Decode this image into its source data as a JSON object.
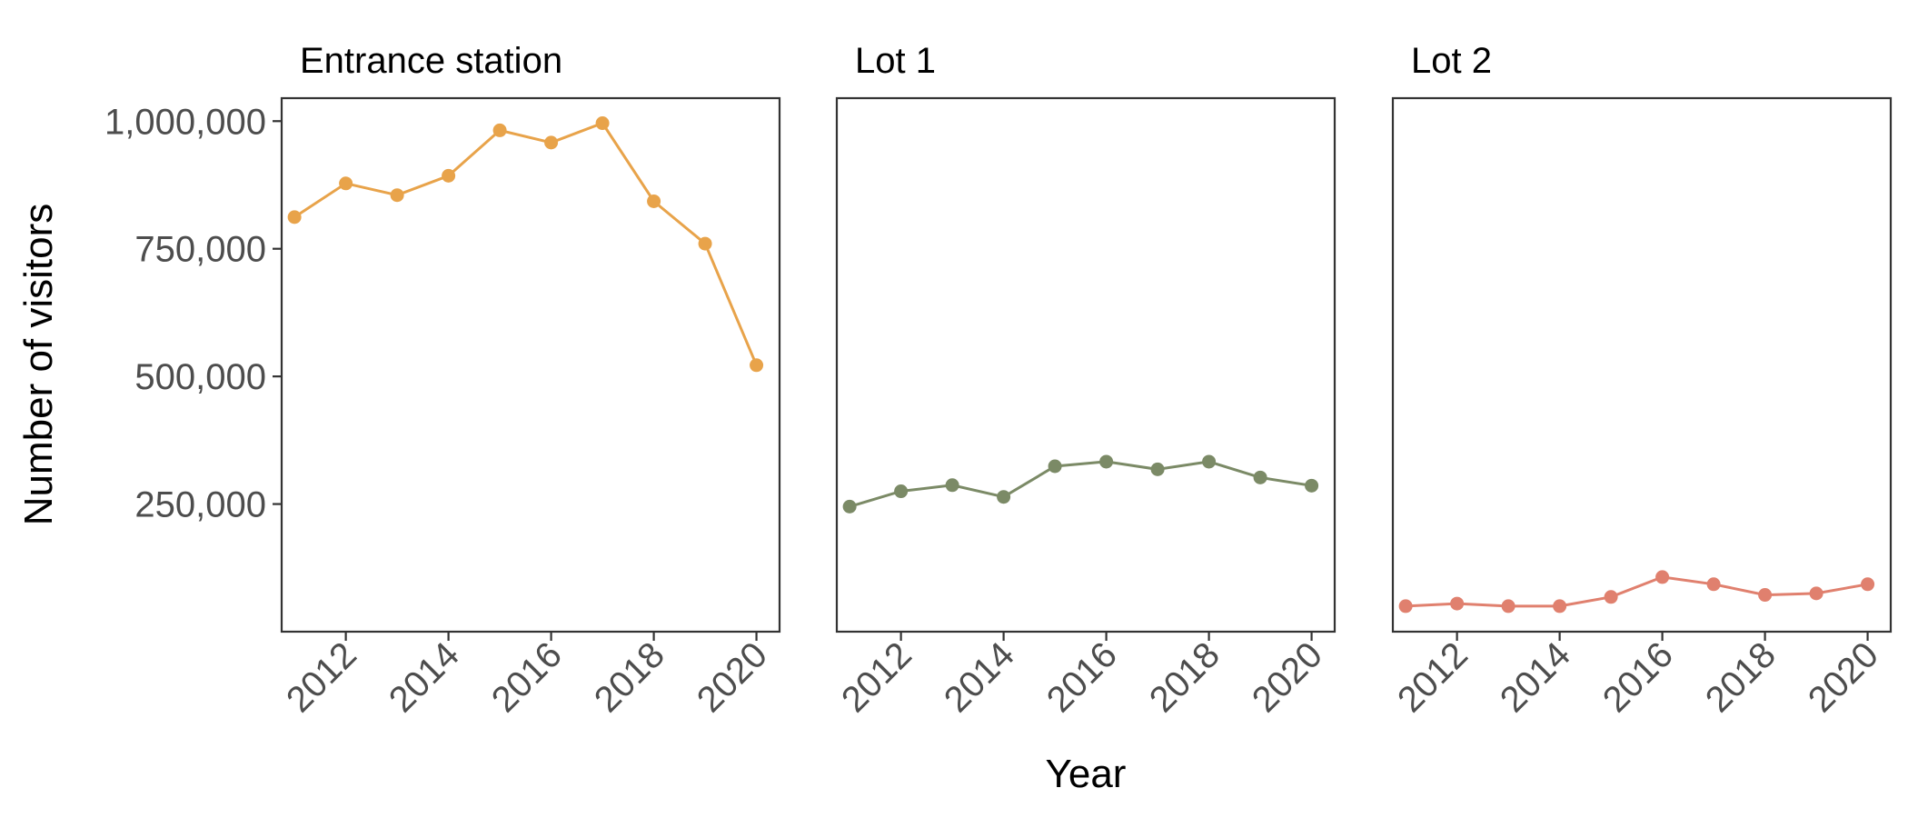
{
  "chart_data": {
    "type": "line",
    "xlabel": "Year",
    "ylabel": "Number of visitors",
    "x": [
      2011,
      2012,
      2013,
      2014,
      2015,
      2016,
      2017,
      2018,
      2019,
      2020
    ],
    "x_ticks": [
      "2012",
      "2014",
      "2016",
      "2018",
      "2020"
    ],
    "y_ticks": [
      "250,000",
      "500,000",
      "750,000",
      "1,000,000"
    ],
    "ylim": [
      0,
      1045000
    ],
    "xlim": [
      2010.75,
      2020.45
    ],
    "grid": false,
    "legend": "none",
    "panels": [
      {
        "title": "Entrance station",
        "color": "#e8a34a",
        "values": [
          812000,
          878000,
          855000,
          893000,
          982000,
          958000,
          996000,
          843000,
          760000,
          522000
        ]
      },
      {
        "title": "Lot 1",
        "color": "#7b8a66",
        "values": [
          245000,
          275000,
          287000,
          264000,
          324000,
          333000,
          318000,
          333000,
          302000,
          286000
        ]
      },
      {
        "title": "Lot 2",
        "color": "#e0806e",
        "values": [
          50000,
          55000,
          50000,
          50000,
          68000,
          107000,
          93000,
          72000,
          75000,
          93000
        ]
      }
    ]
  }
}
